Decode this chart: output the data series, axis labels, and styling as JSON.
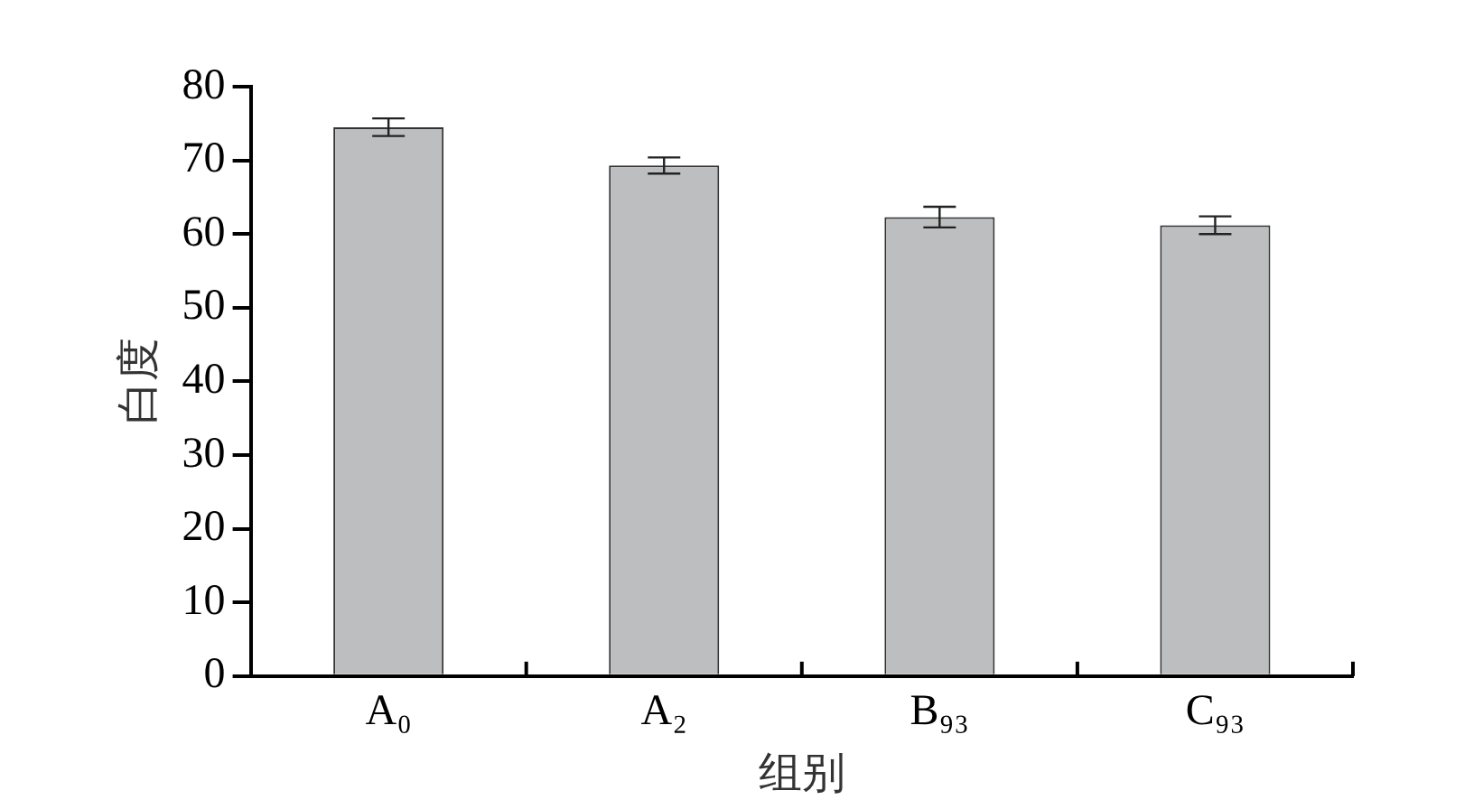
{
  "chart_data": {
    "type": "bar",
    "xlabel": "组别",
    "ylabel": "白度",
    "categories": [
      "A₀",
      "A₂",
      "B₉₃",
      "C₉₃"
    ],
    "values": [
      74.5,
      69.3,
      62.3,
      61.2
    ],
    "errors": [
      1.2,
      1.1,
      1.4,
      1.2
    ],
    "color": "#bcbec0",
    "ylim": [
      0,
      80
    ],
    "yticks": [
      0,
      10,
      20,
      30,
      40,
      50,
      60,
      70,
      80
    ],
    "grid": false,
    "legend": false
  }
}
